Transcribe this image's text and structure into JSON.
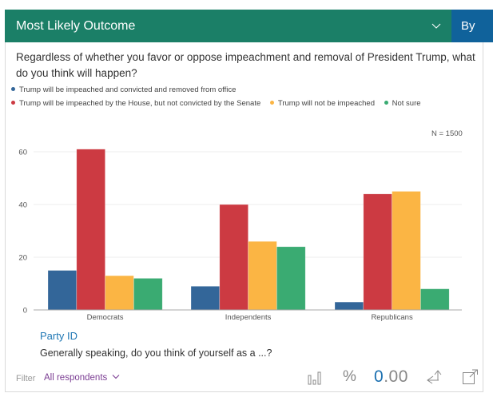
{
  "header": {
    "title": "Most Likely Outcome",
    "by_label": "By"
  },
  "question": "Regardless of whether you favor or oppose impeachment and removal of President Trump, what do you think will happen?",
  "n_label": "N = 1500",
  "colors": {
    "header_bg": "#1b7f67",
    "by_bg": "#10629b",
    "link": "#1f77b4",
    "filter": "#7b3d93"
  },
  "chart_data": {
    "type": "bar",
    "title": "Most Likely Outcome",
    "xlabel": "",
    "ylabel": "",
    "categories": [
      "Democrats",
      "Independents",
      "Republicans"
    ],
    "series": [
      {
        "name": "Trump will be impeached and convicted and removed from office",
        "color": "#336699",
        "values": [
          15,
          9,
          3
        ]
      },
      {
        "name": "Trump will be impeached by the House, but not convicted by the Senate",
        "color": "#cc3a42",
        "values": [
          61,
          40,
          44
        ]
      },
      {
        "name": "Trump will not be impeached",
        "color": "#fbb544",
        "values": [
          13,
          26,
          45
        ]
      },
      {
        "name": "Not sure",
        "color": "#3aab72",
        "values": [
          12,
          24,
          8
        ]
      }
    ],
    "ylim": [
      0,
      65
    ],
    "yticks": [
      0,
      20,
      40,
      60
    ],
    "grid": true,
    "legend_position": "top-left"
  },
  "x_variable": {
    "name": "Party ID",
    "question": "Generally speaking, do you think of yourself as a ...?"
  },
  "footer": {
    "filter_label": "Filter",
    "filter_value": "All respondents",
    "percent_symbol": "%",
    "decimals_lead": "0",
    "decimals_rest": ".00",
    "icons": [
      "bar-chart-icon",
      "percent-icon",
      "decimals-icon",
      "share-icon",
      "expand-icon"
    ]
  }
}
